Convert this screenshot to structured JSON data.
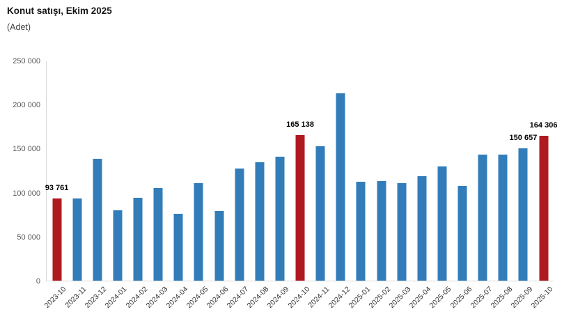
{
  "header": {
    "title": "Konut satışı, Ekim 2025",
    "subtitle": "(Adet)"
  },
  "colors": {
    "bar_default": "#327db9",
    "bar_highlight": "#af1a20",
    "axis_line": "#d9d9d9",
    "y_tick_text": "#595959",
    "x_tick_text": "#333333",
    "data_label_text": "#000000"
  },
  "chart_data": {
    "type": "bar",
    "title": "Konut satışı, Ekim 2025",
    "subtitle": "(Adet)",
    "xlabel": "",
    "ylabel": "Adet",
    "ylim": [
      0,
      250000
    ],
    "ytick_step": 50000,
    "ytick_labels": [
      "0",
      "50 000",
      "100 000",
      "150 000",
      "200 000",
      "250 000"
    ],
    "grid": false,
    "legend": "none",
    "categories": [
      "2023-10",
      "2023-11",
      "2023-12",
      "2024-01",
      "2024-02",
      "2024-03",
      "2024-04",
      "2024-05",
      "2024-06",
      "2024-07",
      "2024-08",
      "2024-09",
      "2024-10",
      "2024-11",
      "2024-12",
      "2025-01",
      "2025-02",
      "2025-03",
      "2025-04",
      "2025-05",
      "2025-06",
      "2025-07",
      "2025-08",
      "2025-09",
      "2025-10"
    ],
    "values": [
      93761,
      93177,
      138577,
      80308,
      93902,
      105476,
      75569,
      110588,
      79313,
      127088,
      134155,
      140919,
      165138,
      153014,
      212637,
      112173,
      112818,
      110795,
      118359,
      130025,
      107723,
      142858,
      143319,
      150657,
      164306
    ],
    "highlighted": [
      "2023-10",
      "2024-10",
      "2025-10"
    ],
    "data_labels": {
      "2023-10": "93 761",
      "2024-10": "165 138",
      "2025-09": "150 657",
      "2025-10": "164 306"
    }
  }
}
